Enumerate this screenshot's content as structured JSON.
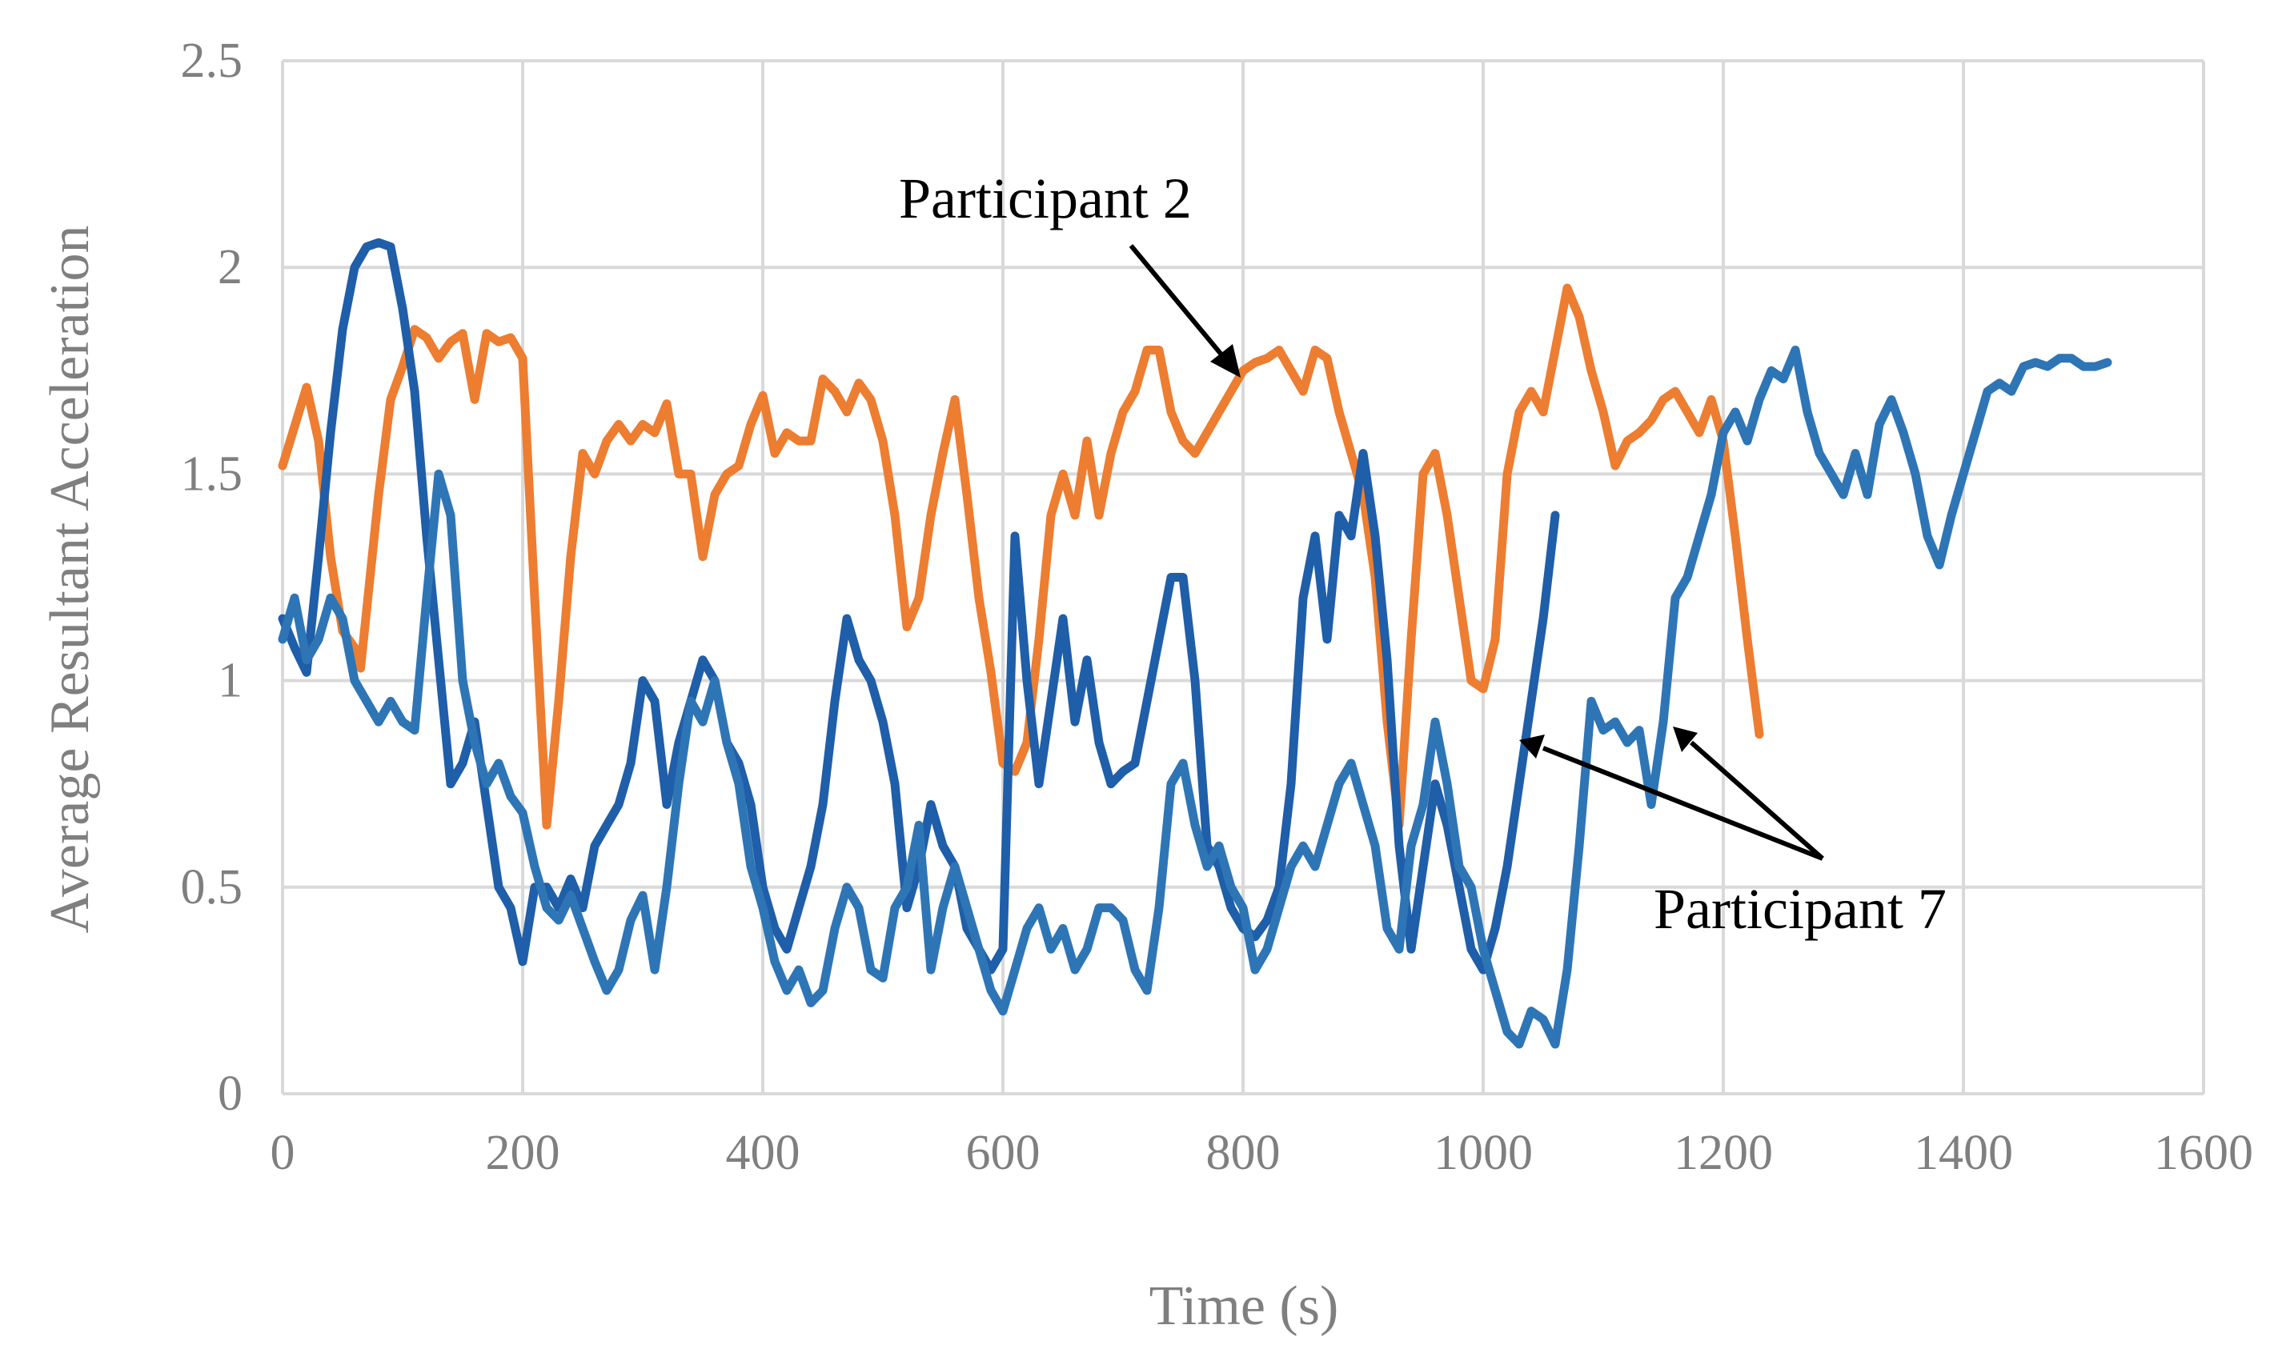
{
  "chart_data": {
    "type": "line",
    "title": "",
    "xlabel": "Time (s)",
    "ylabel": "Average Resultant Acceleration",
    "xlim": [
      0,
      1600
    ],
    "ylim": [
      0,
      2.5
    ],
    "x_ticks": [
      0,
      200,
      400,
      600,
      800,
      1000,
      1200,
      1400,
      1600
    ],
    "y_ticks": [
      0,
      0.5,
      1,
      1.5,
      2,
      2.5
    ],
    "y_tick_labels": [
      "0",
      "0.5",
      "1",
      "1.5",
      "2",
      "2.5"
    ],
    "grid": true,
    "legend": "none",
    "annotations": [
      {
        "text": "Participant 2",
        "points_to": [
          [
            800,
            1.75
          ]
        ]
      },
      {
        "text": "Participant 7",
        "points_to": [
          [
            1025,
            0.87
          ],
          [
            1160,
            0.9
          ]
        ]
      }
    ],
    "series": [
      {
        "name": "Participant 2",
        "color": "#ed7d31",
        "x": [
          0,
          20,
          30,
          40,
          50,
          60,
          65,
          80,
          90,
          100,
          110,
          120,
          130,
          140,
          150,
          160,
          170,
          180,
          190,
          200,
          210,
          220,
          230,
          240,
          250,
          260,
          270,
          280,
          290,
          300,
          310,
          320,
          330,
          340,
          350,
          360,
          370,
          380,
          390,
          400,
          410,
          420,
          430,
          440,
          450,
          460,
          470,
          480,
          490,
          500,
          510,
          520,
          530,
          540,
          550,
          560,
          570,
          580,
          590,
          600,
          610,
          620,
          630,
          640,
          650,
          660,
          670,
          680,
          690,
          700,
          710,
          720,
          730,
          740,
          750,
          760,
          770,
          780,
          790,
          800,
          810,
          820,
          830,
          840,
          850,
          860,
          870,
          880,
          890,
          900,
          910,
          920,
          930,
          940,
          950,
          960,
          970,
          980,
          990,
          1000,
          1010,
          1020,
          1030,
          1040,
          1050,
          1060,
          1070,
          1080,
          1090,
          1100,
          1110,
          1120,
          1130,
          1140,
          1150,
          1160,
          1170,
          1180,
          1190,
          1200,
          1210,
          1220,
          1230
        ],
        "values": [
          1.52,
          1.71,
          1.58,
          1.3,
          1.12,
          1.08,
          1.03,
          1.45,
          1.68,
          1.76,
          1.85,
          1.83,
          1.78,
          1.82,
          1.84,
          1.68,
          1.84,
          1.82,
          1.83,
          1.78,
          1.2,
          0.65,
          0.95,
          1.3,
          1.55,
          1.5,
          1.58,
          1.62,
          1.58,
          1.62,
          1.6,
          1.67,
          1.5,
          1.5,
          1.3,
          1.45,
          1.5,
          1.52,
          1.62,
          1.69,
          1.55,
          1.6,
          1.58,
          1.58,
          1.73,
          1.7,
          1.65,
          1.72,
          1.68,
          1.58,
          1.4,
          1.13,
          1.2,
          1.4,
          1.55,
          1.68,
          1.45,
          1.2,
          1.02,
          0.8,
          0.78,
          0.85,
          1.1,
          1.4,
          1.5,
          1.4,
          1.58,
          1.4,
          1.55,
          1.65,
          1.7,
          1.8,
          1.8,
          1.65,
          1.58,
          1.55,
          1.6,
          1.65,
          1.7,
          1.75,
          1.77,
          1.78,
          1.8,
          1.75,
          1.7,
          1.8,
          1.78,
          1.65,
          1.55,
          1.45,
          1.25,
          0.9,
          0.65,
          1.1,
          1.5,
          1.55,
          1.4,
          1.2,
          1.0,
          0.98,
          1.1,
          1.5,
          1.65,
          1.7,
          1.65,
          1.8,
          1.95,
          1.88,
          1.75,
          1.65,
          1.52,
          1.58,
          1.6,
          1.63,
          1.68,
          1.7,
          1.65,
          1.6,
          1.68,
          1.58,
          1.35,
          1.1,
          0.87
        ]
      },
      {
        "name": "Participant 7 (A)",
        "color": "#1f5ea8",
        "x": [
          0,
          10,
          20,
          30,
          40,
          50,
          60,
          70,
          80,
          90,
          100,
          110,
          120,
          130,
          140,
          150,
          160,
          170,
          180,
          190,
          200,
          210,
          220,
          230,
          240,
          250,
          260,
          270,
          280,
          290,
          300,
          310,
          320,
          330,
          340,
          350,
          360,
          370,
          380,
          390,
          400,
          410,
          420,
          430,
          440,
          450,
          460,
          470,
          480,
          490,
          500,
          510,
          520,
          530,
          540,
          550,
          560,
          570,
          580,
          590,
          600,
          610,
          620,
          630,
          640,
          650,
          660,
          670,
          680,
          690,
          700,
          710,
          720,
          730,
          740,
          750,
          760,
          770,
          780,
          790,
          800,
          810,
          820,
          830,
          840,
          850,
          860,
          870,
          880,
          890,
          900,
          910,
          920,
          930,
          940,
          950,
          960,
          970,
          980,
          990,
          1000,
          1010,
          1020,
          1030,
          1040,
          1050,
          1060
        ],
        "values": [
          1.15,
          1.08,
          1.02,
          1.3,
          1.6,
          1.85,
          2.0,
          2.05,
          2.06,
          2.05,
          1.9,
          1.7,
          1.35,
          1.05,
          0.75,
          0.8,
          0.9,
          0.7,
          0.5,
          0.45,
          0.32,
          0.5,
          0.5,
          0.45,
          0.52,
          0.45,
          0.6,
          0.65,
          0.7,
          0.8,
          1.0,
          0.95,
          0.7,
          0.85,
          0.95,
          1.05,
          1.0,
          0.85,
          0.8,
          0.7,
          0.5,
          0.4,
          0.35,
          0.45,
          0.55,
          0.7,
          0.95,
          1.15,
          1.05,
          1.0,
          0.9,
          0.75,
          0.45,
          0.55,
          0.7,
          0.6,
          0.55,
          0.4,
          0.35,
          0.3,
          0.35,
          1.35,
          1.0,
          0.75,
          0.95,
          1.15,
          0.9,
          1.05,
          0.85,
          0.75,
          0.78,
          0.8,
          0.95,
          1.1,
          1.25,
          1.25,
          1.0,
          0.6,
          0.55,
          0.45,
          0.4,
          0.38,
          0.42,
          0.5,
          0.75,
          1.2,
          1.35,
          1.1,
          1.4,
          1.35,
          1.55,
          1.35,
          1.05,
          0.6,
          0.35,
          0.55,
          0.75,
          0.65,
          0.5,
          0.35,
          0.3,
          0.4,
          0.55,
          0.75,
          0.95,
          1.15,
          1.4
        ]
      },
      {
        "name": "Participant 7 (B)",
        "color": "#2e75b6",
        "x": [
          0,
          10,
          20,
          30,
          40,
          50,
          60,
          70,
          80,
          90,
          100,
          110,
          120,
          130,
          140,
          150,
          160,
          170,
          180,
          190,
          200,
          210,
          220,
          230,
          240,
          250,
          260,
          270,
          280,
          290,
          300,
          310,
          320,
          330,
          340,
          350,
          360,
          370,
          380,
          390,
          400,
          410,
          420,
          430,
          440,
          450,
          460,
          470,
          480,
          490,
          500,
          510,
          520,
          530,
          540,
          550,
          560,
          570,
          580,
          590,
          600,
          610,
          620,
          630,
          640,
          650,
          660,
          670,
          680,
          690,
          700,
          710,
          720,
          730,
          740,
          750,
          760,
          770,
          780,
          790,
          800,
          810,
          820,
          830,
          840,
          850,
          860,
          870,
          880,
          890,
          900,
          910,
          920,
          930,
          940,
          950,
          960,
          970,
          980,
          990,
          1000,
          1010,
          1020,
          1030,
          1040,
          1050,
          1060,
          1070,
          1080,
          1090,
          1100,
          1110,
          1120,
          1130,
          1140,
          1150,
          1160,
          1170,
          1180,
          1190,
          1200,
          1210,
          1220,
          1230,
          1240,
          1250,
          1260,
          1270,
          1280,
          1290,
          1300,
          1310,
          1320,
          1330,
          1340,
          1350,
          1360,
          1370,
          1380,
          1390,
          1400,
          1410,
          1420,
          1430,
          1440,
          1450,
          1460,
          1470,
          1480,
          1490,
          1500,
          1510,
          1520
        ],
        "values": [
          1.1,
          1.2,
          1.05,
          1.1,
          1.2,
          1.15,
          1.0,
          0.95,
          0.9,
          0.95,
          0.9,
          0.88,
          1.2,
          1.5,
          1.4,
          1.0,
          0.85,
          0.75,
          0.8,
          0.72,
          0.68,
          0.55,
          0.45,
          0.42,
          0.48,
          0.4,
          0.32,
          0.25,
          0.3,
          0.42,
          0.48,
          0.3,
          0.5,
          0.75,
          0.95,
          0.9,
          1.0,
          0.85,
          0.75,
          0.55,
          0.45,
          0.32,
          0.25,
          0.3,
          0.22,
          0.25,
          0.4,
          0.5,
          0.45,
          0.3,
          0.28,
          0.45,
          0.5,
          0.65,
          0.3,
          0.45,
          0.55,
          0.45,
          0.35,
          0.25,
          0.2,
          0.3,
          0.4,
          0.45,
          0.35,
          0.4,
          0.3,
          0.35,
          0.45,
          0.45,
          0.42,
          0.3,
          0.25,
          0.45,
          0.75,
          0.8,
          0.65,
          0.55,
          0.6,
          0.5,
          0.45,
          0.3,
          0.35,
          0.45,
          0.55,
          0.6,
          0.55,
          0.65,
          0.75,
          0.8,
          0.7,
          0.6,
          0.4,
          0.35,
          0.6,
          0.7,
          0.9,
          0.75,
          0.55,
          0.5,
          0.35,
          0.25,
          0.15,
          0.12,
          0.2,
          0.18,
          0.12,
          0.3,
          0.6,
          0.95,
          0.88,
          0.9,
          0.85,
          0.88,
          0.7,
          0.9,
          1.2,
          1.25,
          1.35,
          1.45,
          1.6,
          1.65,
          1.58,
          1.68,
          1.75,
          1.73,
          1.8,
          1.65,
          1.55,
          1.5,
          1.45,
          1.55,
          1.45,
          1.62,
          1.68,
          1.6,
          1.5,
          1.35,
          1.28,
          1.4,
          1.5,
          1.6,
          1.7,
          1.72,
          1.7,
          1.76,
          1.77,
          1.76,
          1.78,
          1.78,
          1.76,
          1.76,
          1.77
        ]
      }
    ]
  }
}
